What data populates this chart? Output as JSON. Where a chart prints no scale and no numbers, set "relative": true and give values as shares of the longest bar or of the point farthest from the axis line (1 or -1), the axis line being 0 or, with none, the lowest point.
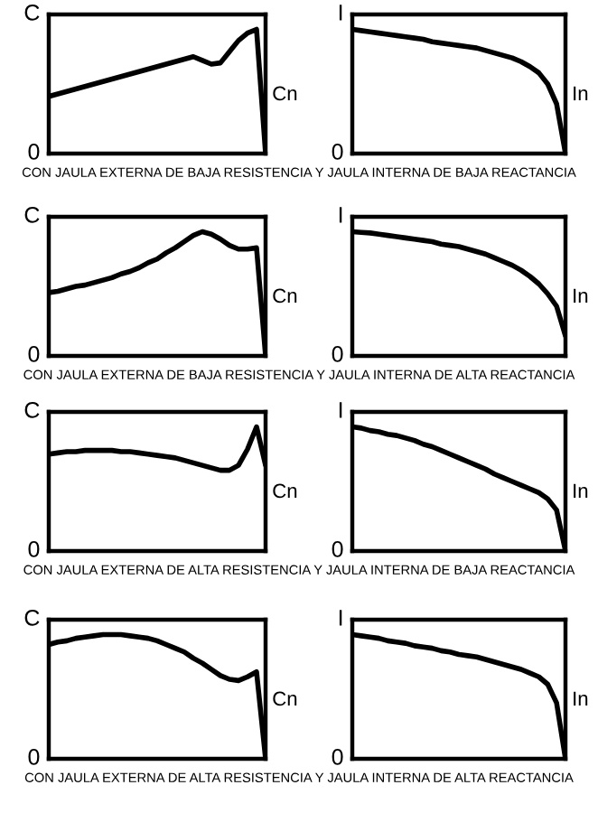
{
  "chart_data": [
    {
      "type": "line",
      "relative": true,
      "ylabel": "C",
      "categories": [
        null,
        null,
        null,
        null,
        null,
        null,
        null,
        null,
        null,
        null,
        null,
        null,
        null,
        null,
        null,
        null,
        null,
        null,
        null,
        null,
        null,
        null,
        null,
        null,
        null
      ],
      "series": [
        {
          "color": "#000000",
          "values": [
            0.46,
            0.48,
            0.5,
            0.52,
            0.54,
            0.56,
            0.58,
            0.6,
            0.62,
            0.64,
            0.66,
            0.68,
            0.7,
            0.72,
            0.74,
            0.76,
            0.78,
            0.75,
            0.72,
            0.73,
            0.82,
            0.91,
            0.97,
            1.0,
            0.0
          ]
        }
      ],
      "annotations": [
        "0",
        "Cn",
        "CON JAULA EXTERNA DE BAJA RESISTENCIA Y JAULA INTERNA DE BAJA REACTANCIA"
      ]
    },
    {
      "type": "line",
      "relative": true,
      "ylabel": "I",
      "categories": [
        null,
        null,
        null,
        null,
        null,
        null,
        null,
        null,
        null,
        null,
        null,
        null,
        null,
        null,
        null,
        null,
        null,
        null,
        null,
        null,
        null,
        null,
        null,
        null,
        null
      ],
      "series": [
        {
          "color": "#000000",
          "values": [
            1.0,
            0.99,
            0.98,
            0.97,
            0.96,
            0.95,
            0.94,
            0.93,
            0.92,
            0.9,
            0.89,
            0.88,
            0.87,
            0.86,
            0.85,
            0.83,
            0.81,
            0.79,
            0.77,
            0.74,
            0.7,
            0.65,
            0.56,
            0.4,
            0.0
          ]
        }
      ],
      "annotations": [
        "0",
        "In"
      ]
    },
    {
      "type": "line",
      "relative": true,
      "ylabel": "C",
      "categories": [
        null,
        null,
        null,
        null,
        null,
        null,
        null,
        null,
        null,
        null,
        null,
        null,
        null,
        null,
        null,
        null,
        null,
        null,
        null,
        null,
        null,
        null,
        null,
        null,
        null
      ],
      "series": [
        {
          "color": "#000000",
          "values": [
            0.51,
            0.52,
            0.54,
            0.56,
            0.57,
            0.59,
            0.61,
            0.63,
            0.66,
            0.68,
            0.71,
            0.75,
            0.78,
            0.83,
            0.87,
            0.92,
            0.97,
            1.0,
            0.98,
            0.94,
            0.89,
            0.86,
            0.86,
            0.87,
            0.0
          ]
        }
      ],
      "annotations": [
        "0",
        "Cn",
        "CON JAULA EXTERNA DE BAJA RESISTENCIA Y JAULA INTERNA DE ALTA REACTANCIA"
      ]
    },
    {
      "type": "line",
      "relative": true,
      "ylabel": "I",
      "categories": [
        null,
        null,
        null,
        null,
        null,
        null,
        null,
        null,
        null,
        null,
        null,
        null,
        null,
        null,
        null,
        null,
        null,
        null,
        null,
        null,
        null,
        null,
        null,
        null,
        null
      ],
      "series": [
        {
          "color": "#000000",
          "values": [
            1.0,
            0.995,
            0.99,
            0.98,
            0.97,
            0.96,
            0.95,
            0.94,
            0.93,
            0.92,
            0.9,
            0.89,
            0.88,
            0.86,
            0.84,
            0.82,
            0.79,
            0.76,
            0.73,
            0.69,
            0.64,
            0.58,
            0.5,
            0.4,
            0.16
          ]
        }
      ],
      "annotations": [
        "0",
        "In"
      ]
    },
    {
      "type": "line",
      "relative": true,
      "ylabel": "C",
      "categories": [
        null,
        null,
        null,
        null,
        null,
        null,
        null,
        null,
        null,
        null,
        null,
        null,
        null,
        null,
        null,
        null,
        null,
        null,
        null,
        null,
        null,
        null,
        null,
        null,
        null
      ],
      "series": [
        {
          "color": "#000000",
          "values": [
            0.78,
            0.79,
            0.8,
            0.8,
            0.81,
            0.81,
            0.81,
            0.81,
            0.8,
            0.8,
            0.79,
            0.78,
            0.77,
            0.76,
            0.75,
            0.73,
            0.71,
            0.69,
            0.67,
            0.65,
            0.65,
            0.69,
            0.82,
            1.0,
            0.69
          ]
        }
      ],
      "annotations": [
        "0",
        "Cn",
        "CON JAULA EXTERNA DE ALTA RESISTENCIA Y JAULA INTERNA DE BAJA REACTANCIA"
      ]
    },
    {
      "type": "line",
      "relative": true,
      "ylabel": "I",
      "categories": [
        null,
        null,
        null,
        null,
        null,
        null,
        null,
        null,
        null,
        null,
        null,
        null,
        null,
        null,
        null,
        null,
        null,
        null,
        null,
        null,
        null,
        null,
        null,
        null,
        null
      ],
      "series": [
        {
          "color": "#000000",
          "values": [
            1.0,
            0.99,
            0.97,
            0.96,
            0.94,
            0.93,
            0.91,
            0.89,
            0.86,
            0.84,
            0.81,
            0.78,
            0.75,
            0.72,
            0.69,
            0.66,
            0.62,
            0.59,
            0.56,
            0.53,
            0.5,
            0.47,
            0.42,
            0.33,
            0.0
          ]
        }
      ],
      "annotations": [
        "0",
        "In"
      ]
    },
    {
      "type": "line",
      "relative": true,
      "ylabel": "C",
      "categories": [
        null,
        null,
        null,
        null,
        null,
        null,
        null,
        null,
        null,
        null,
        null,
        null,
        null,
        null,
        null,
        null,
        null,
        null,
        null,
        null,
        null,
        null,
        null,
        null,
        null
      ],
      "series": [
        {
          "color": "#000000",
          "values": [
            0.92,
            0.94,
            0.95,
            0.97,
            0.98,
            0.99,
            1.0,
            1.0,
            1.0,
            0.99,
            0.98,
            0.97,
            0.95,
            0.92,
            0.89,
            0.86,
            0.81,
            0.77,
            0.72,
            0.67,
            0.64,
            0.63,
            0.66,
            0.7,
            0.0
          ]
        }
      ],
      "annotations": [
        "0",
        "Cn",
        "CON JAULA EXTERNA DE ALTA RESISTENCIA Y JAULA INTERNA DE ALTA REACTANCIA"
      ]
    },
    {
      "type": "line",
      "relative": true,
      "ylabel": "I",
      "categories": [
        null,
        null,
        null,
        null,
        null,
        null,
        null,
        null,
        null,
        null,
        null,
        null,
        null,
        null,
        null,
        null,
        null,
        null,
        null,
        null,
        null,
        null,
        null,
        null,
        null
      ],
      "series": [
        {
          "color": "#000000",
          "values": [
            1.0,
            0.99,
            0.98,
            0.97,
            0.95,
            0.94,
            0.93,
            0.91,
            0.9,
            0.89,
            0.87,
            0.86,
            0.84,
            0.83,
            0.82,
            0.8,
            0.78,
            0.76,
            0.74,
            0.72,
            0.69,
            0.66,
            0.6,
            0.45,
            0.0
          ]
        }
      ],
      "annotations": [
        "0",
        "In"
      ]
    }
  ]
}
